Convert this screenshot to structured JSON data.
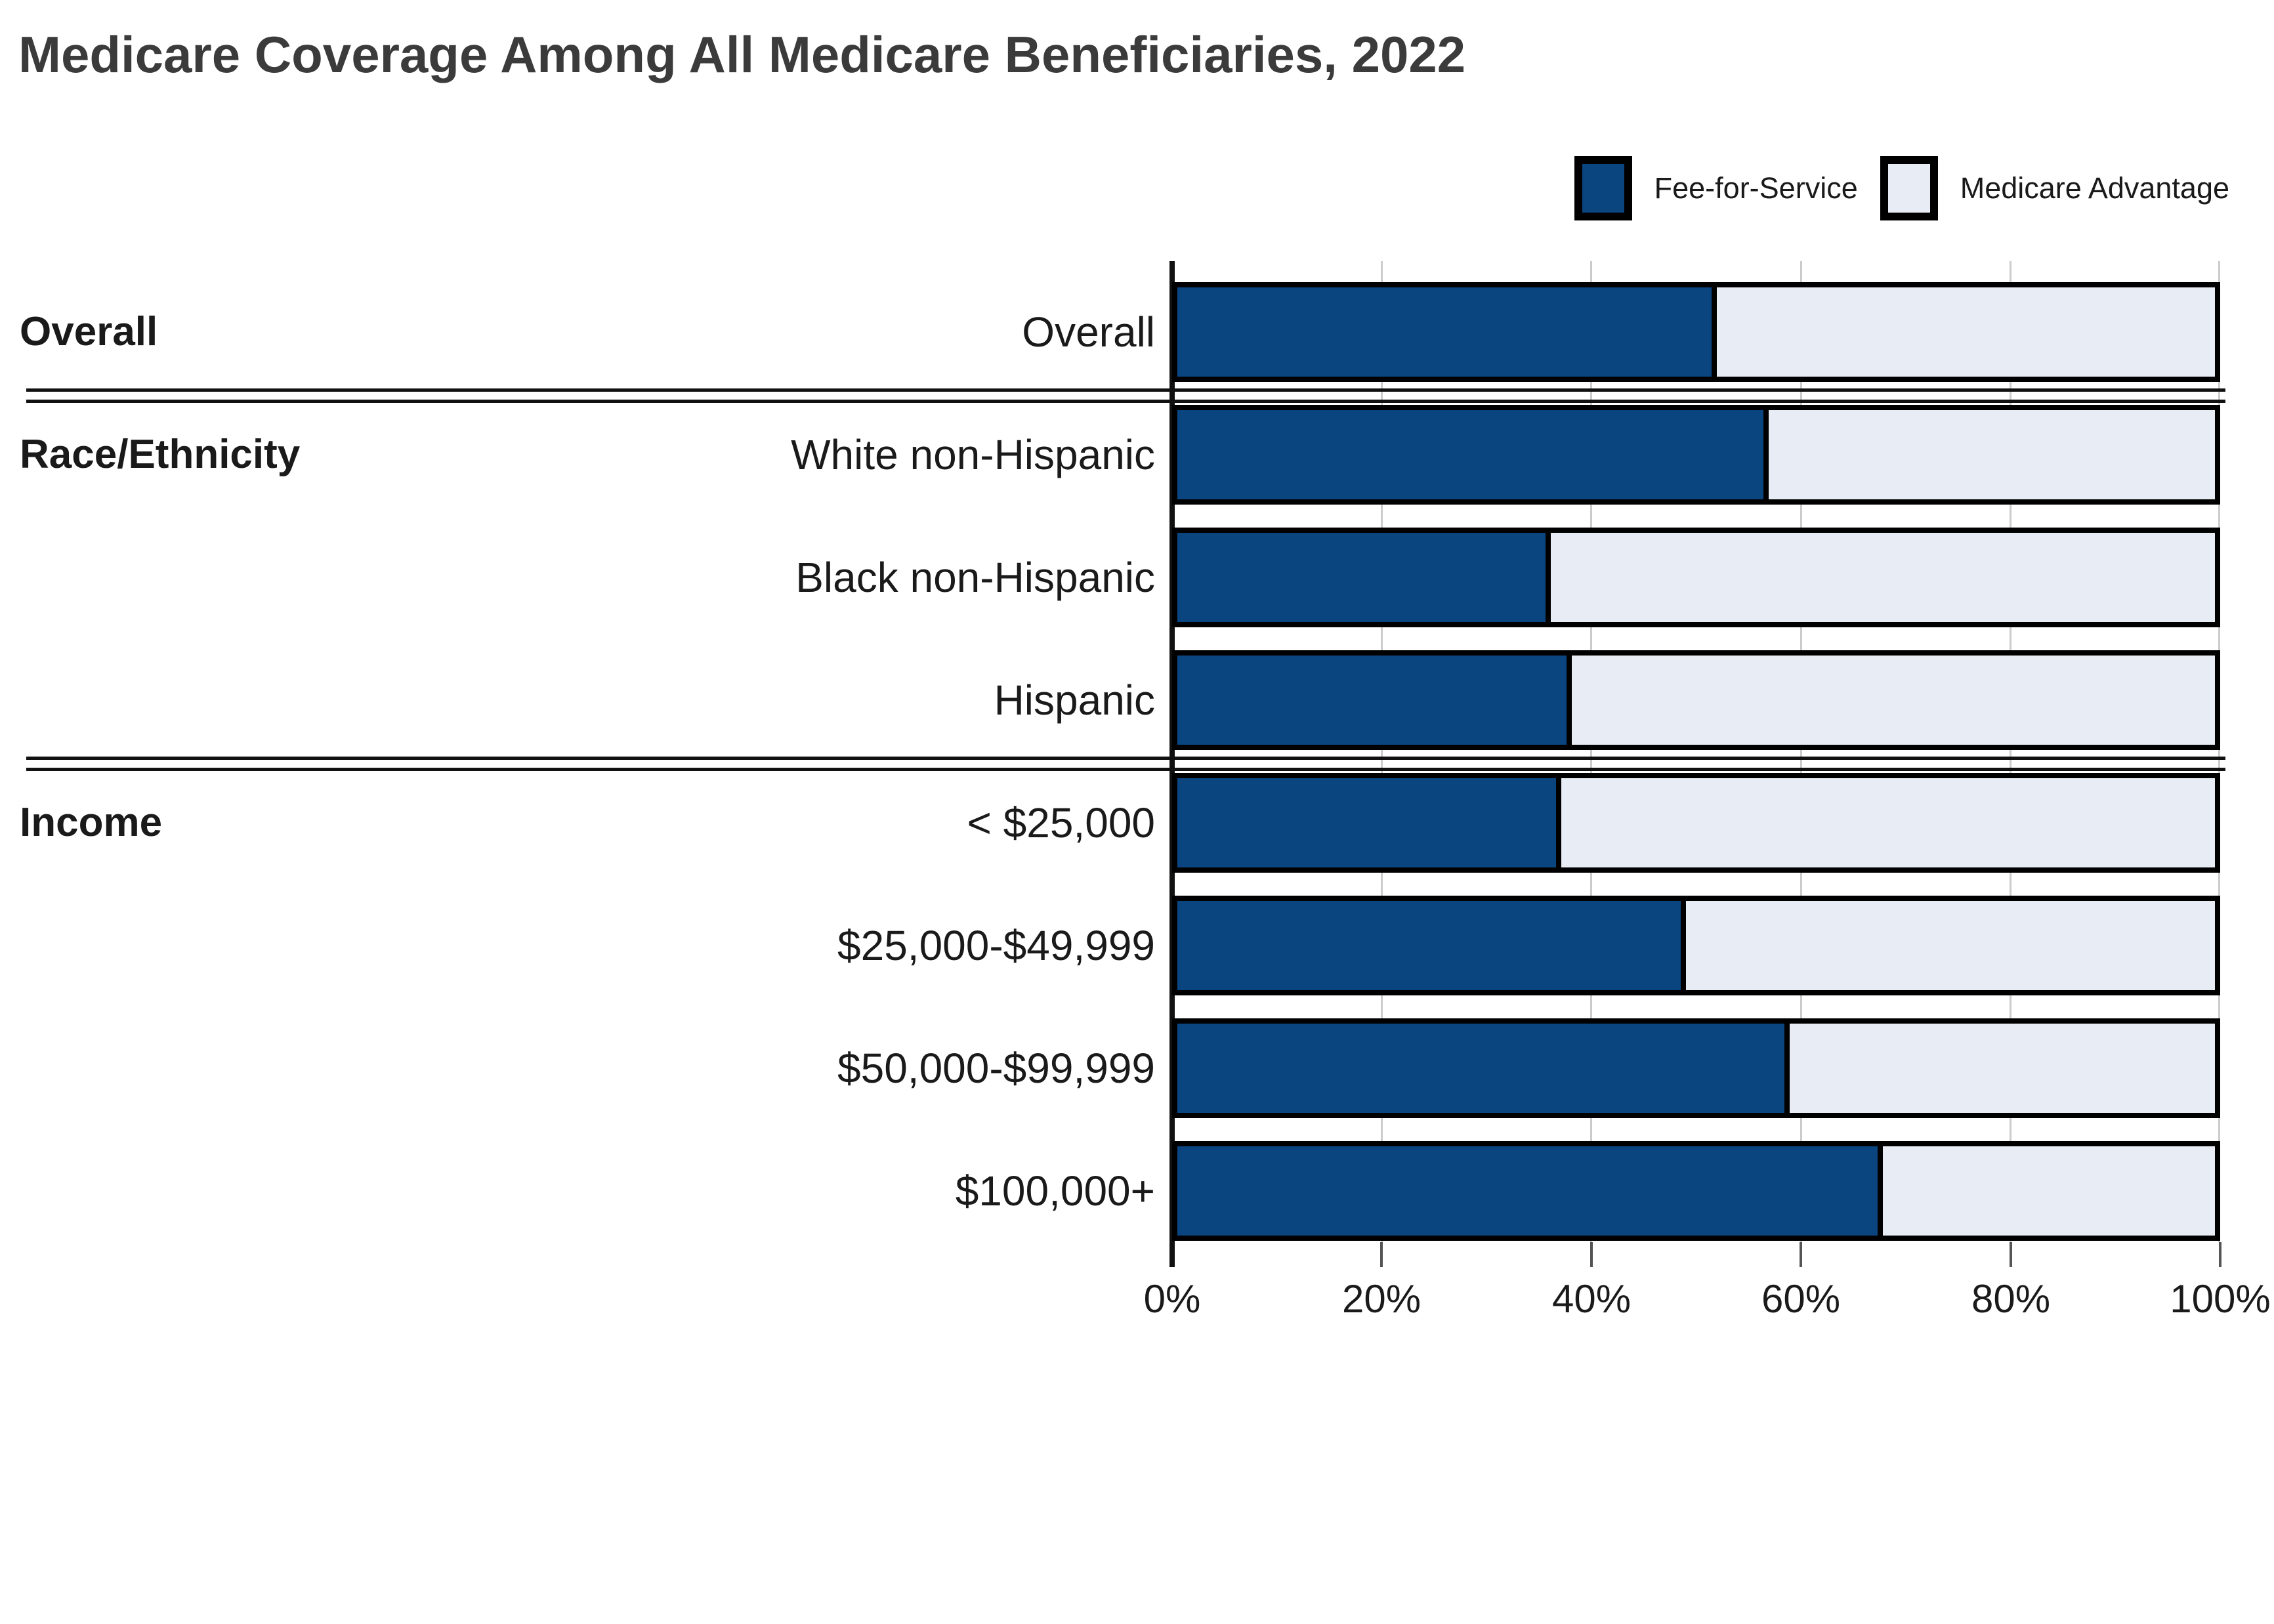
{
  "title": "Medicare Coverage Among All Medicare Beneficiaries, 2022",
  "legend": [
    {
      "label": "Fee-for-Service",
      "color": "#0b4580"
    },
    {
      "label": "Medicare Advantage",
      "color": "#e8ecf4"
    }
  ],
  "colors": {
    "ffs": "#0b4580",
    "ma": "#e8ecf4",
    "bar_border": "#000000",
    "gridline": "#cccccc",
    "title_text": "#3b3b3b",
    "text": "#1a1a1a"
  },
  "chart_data": {
    "type": "bar",
    "orientation": "horizontal",
    "stacked": true,
    "title": "Medicare Coverage Among All Medicare Beneficiaries, 2022",
    "series_names": [
      "Fee-for-Service",
      "Medicare Advantage"
    ],
    "x_axis": {
      "min": 0,
      "max": 100,
      "ticks": [
        "0%",
        "20%",
        "40%",
        "60%",
        "80%",
        "100%"
      ]
    },
    "legend_position": "top-right",
    "grid": "vertical",
    "groups": [
      {
        "label": "Overall",
        "rows": [
          {
            "label": "Overall",
            "ffs": 52,
            "ma": 48
          }
        ]
      },
      {
        "label": "Race/Ethnicity",
        "rows": [
          {
            "label": "White non-Hispanic",
            "ffs": 57,
            "ma": 43
          },
          {
            "label": "Black non-Hispanic",
            "ffs": 36,
            "ma": 64
          },
          {
            "label": "Hispanic",
            "ffs": 38,
            "ma": 62
          }
        ]
      },
      {
        "label": "Income",
        "rows": [
          {
            "label": "< $25,000",
            "ffs": 37,
            "ma": 63
          },
          {
            "label": "$25,000-$49,999",
            "ffs": 49,
            "ma": 51
          },
          {
            "label": "$50,000-$99,999",
            "ffs": 59,
            "ma": 41
          },
          {
            "label": "$100,000+",
            "ffs": 68,
            "ma": 32
          }
        ]
      }
    ]
  }
}
